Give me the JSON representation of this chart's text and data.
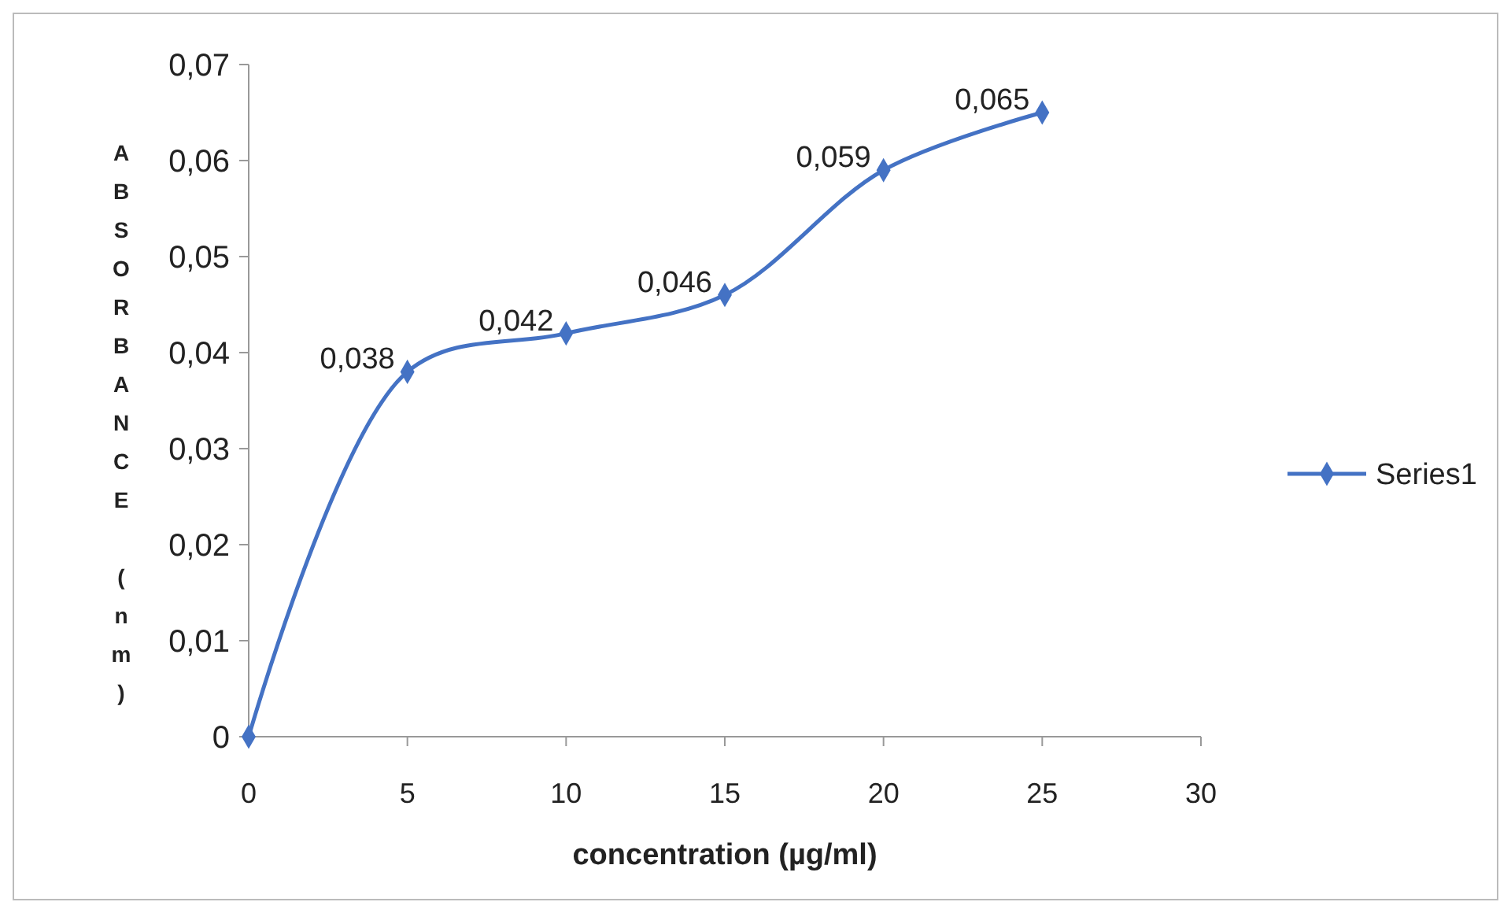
{
  "chart_data": {
    "type": "line",
    "xlabel": "concentration (µg/ml)",
    "ylabel": "ABSORBANCE (nm)",
    "x": [
      0,
      5,
      10,
      15,
      20,
      25
    ],
    "series": [
      {
        "name": "Series1",
        "color": "#4472c4",
        "values": [
          0,
          0.038,
          0.042,
          0.046,
          0.059,
          0.065
        ],
        "value_labels": [
          null,
          "0,038",
          "0,042",
          "0,046",
          "0,059",
          "0,065"
        ]
      }
    ],
    "xlim": [
      0,
      30
    ],
    "xticks": [
      0,
      5,
      10,
      15,
      20,
      25,
      30
    ],
    "ylim": [
      0,
      0.07
    ],
    "yticks": [
      0,
      {
        "value": 0.01,
        "label": "0,01"
      },
      {
        "value": 0.02,
        "label": "0,02"
      },
      {
        "value": 0.03,
        "label": "0,03"
      },
      {
        "value": 0.04,
        "label": "0,04"
      },
      {
        "value": 0.05,
        "label": "0,05"
      },
      {
        "value": 0.06,
        "label": "0,06"
      },
      {
        "value": 0.07,
        "label": "0,07"
      }
    ],
    "grid": false,
    "legend": "right",
    "marker": "diamond",
    "line_style": "solid"
  }
}
